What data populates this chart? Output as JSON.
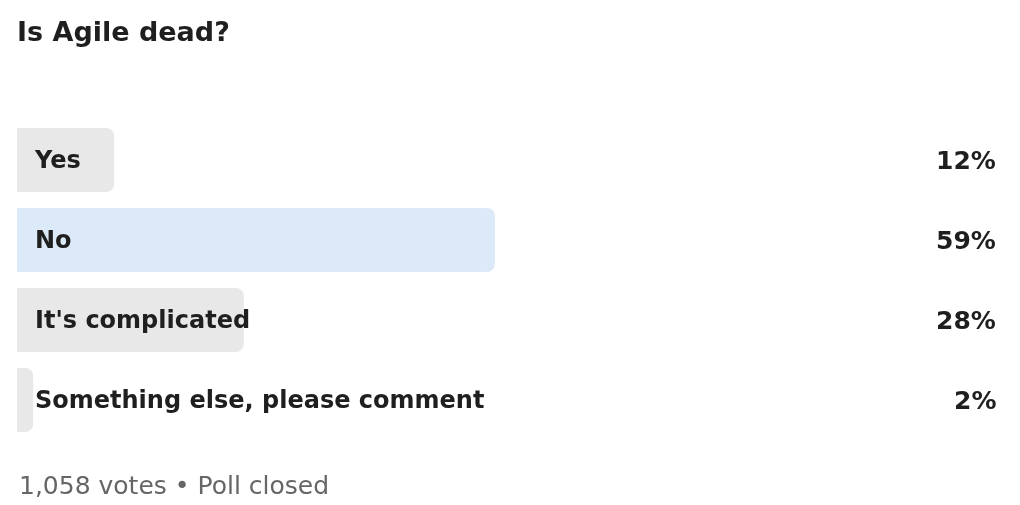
{
  "chart_data": {
    "type": "bar",
    "orientation": "horizontal",
    "title": "Is Agile dead?",
    "categories": [
      "Yes",
      "No",
      "It's complicated",
      "Something else, please comment"
    ],
    "values": [
      12,
      59,
      28,
      2
    ],
    "colors": [
      "#e8e8e8",
      "#dce9f8",
      "#e8e8e8",
      "#e8e8e8"
    ],
    "value_labels": [
      "12%",
      "59%",
      "28%",
      "2%"
    ],
    "tick_labels": "y",
    "annotations": [
      "1,058 votes • Poll closed"
    ]
  }
}
